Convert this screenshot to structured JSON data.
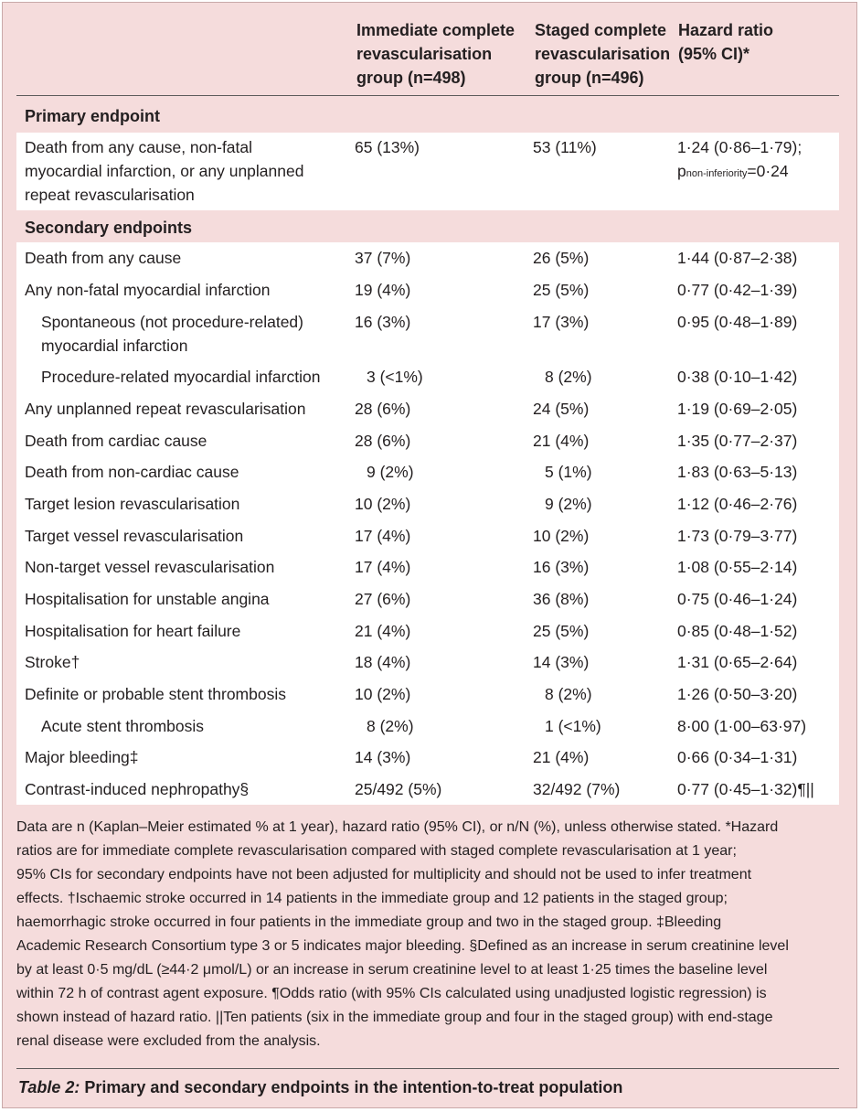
{
  "header": {
    "col2": [
      "Immediate complete",
      "revascularisation",
      "group (n=498)"
    ],
    "col3": [
      "Staged complete",
      "revascularisation",
      "group (n=496)"
    ],
    "col4": [
      "Hazard ratio",
      "(95% CI)*"
    ]
  },
  "primary": {
    "heading": "Primary endpoint",
    "label": [
      "Death from any cause, non-fatal",
      "myocardial infarction, or any unplanned",
      "repeat revascularisation"
    ],
    "immediate": "65 (13%)",
    "staged": "53 (11%)",
    "hr_line1": "1·24 (0·86–1·79);",
    "hr_p": "p",
    "hr_sub": "non-inferiority",
    "hr_pval": "=0·24"
  },
  "secondary": {
    "heading": "Secondary endpoints",
    "rows": [
      {
        "label": "Death from any cause",
        "immediate": "37 (7%)",
        "staged": "26 (5%)",
        "hr": "1·44 (0·87–2·38)"
      },
      {
        "label": "Any non-fatal myocardial infarction",
        "immediate": "19 (4%)",
        "staged": "25 (5%)",
        "hr": "0·77 (0·42–1·39)"
      },
      {
        "label": "Spontaneous (not procedure-related)",
        "label2": "myocardial infarction",
        "immediate": "16 (3%)",
        "staged": "17 (3%)",
        "hr": "0·95 (0·48–1·89)"
      },
      {
        "label": "Procedure-related myocardial infarction",
        "immediate": "3 (<1%)",
        "staged": "8 (2%)",
        "hr": "0·38 (0·10–1·42)"
      },
      {
        "label": "Any unplanned repeat revascularisation",
        "immediate": "28 (6%)",
        "staged": "24 (5%)",
        "hr": "1·19 (0·69–2·05)"
      },
      {
        "label": "Death from cardiac cause",
        "immediate": "28 (6%)",
        "staged": "21 (4%)",
        "hr": "1·35 (0·77–2·37)"
      },
      {
        "label": "Death from non-cardiac cause",
        "immediate": "9 (2%)",
        "staged": "5 (1%)",
        "hr": "1·83 (0·63–5·13)"
      },
      {
        "label": "Target lesion revascularisation",
        "immediate": "10 (2%)",
        "staged": "9 (2%)",
        "hr": "1·12 (0·46–2·76)"
      },
      {
        "label": "Target vessel revascularisation",
        "immediate": "17 (4%)",
        "staged": "10 (2%)",
        "hr": "1·73 (0·79–3·77)"
      },
      {
        "label": "Non-target vessel revascularisation",
        "immediate": "17 (4%)",
        "staged": "16 (3%)",
        "hr": "1·08 (0·55–2·14)"
      },
      {
        "label": "Hospitalisation for unstable angina",
        "immediate": "27 (6%)",
        "staged": "36 (8%)",
        "hr": "0·75 (0·46–1·24)"
      },
      {
        "label": "Hospitalisation for heart failure",
        "immediate": "21 (4%)",
        "staged": "25 (5%)",
        "hr": "0·85 (0·48–1·52)"
      },
      {
        "label": "Stroke†",
        "immediate": "18 (4%)",
        "staged": "14 (3%)",
        "hr": "1·31 (0·65–2·64)"
      },
      {
        "label": "Definite or probable stent thrombosis",
        "immediate": "10 (2%)",
        "staged": "8 (2%)",
        "hr": "1·26 (0·50–3·20)"
      },
      {
        "label": "Acute stent thrombosis",
        "immediate": "8 (2%)",
        "staged": "1 (<1%)",
        "hr": "8·00 (1·00–63·97)"
      },
      {
        "label": "Major bleeding‡",
        "immediate": "14 (3%)",
        "staged": "21 (4%)",
        "hr": "0·66 (0·34–1·31)"
      },
      {
        "label": "Contrast-induced nephropathy§",
        "immediate": "25/492 (5%)",
        "staged": "32/492 (7%)",
        "hr": "0·77 (0·45–1·32)¶||"
      }
    ]
  },
  "footnote_lines": [
    "Data are n (Kaplan–Meier estimated % at 1 year), hazard ratio (95% CI), or n/N (%), unless otherwise stated. *Hazard",
    "ratios are for immediate complete revascularisation compared with staged complete revascularisation at 1 year;",
    "95% CIs for secondary endpoints have not been adjusted for multiplicity and should not be used to infer treatment",
    "effects. †Ischaemic stroke occurred in 14 patients in the immediate group and 12 patients in the staged group;",
    "haemorrhagic stroke occurred in four patients in the immediate group and two in the staged group. ‡Bleeding",
    "Academic Research Consortium type 3 or 5 indicates major bleeding. §Defined as an increase in serum creatinine level",
    "by at least 0·5 mg/dL (≥44·2 μmol/L) or an increase in serum creatinine level to at least 1·25 times the baseline level",
    "within 72 h of contrast agent exposure. ¶Odds ratio (with 95% CIs calculated using unadjusted logistic regression) is",
    "shown instead of hazard ratio. ||Ten patients (six in the immediate group and four in the staged group) with end-stage",
    "renal disease were excluded from the analysis."
  ],
  "caption": {
    "label": "Table 2:",
    "text": " Primary and secondary endpoints in the intention-to-treat population"
  }
}
